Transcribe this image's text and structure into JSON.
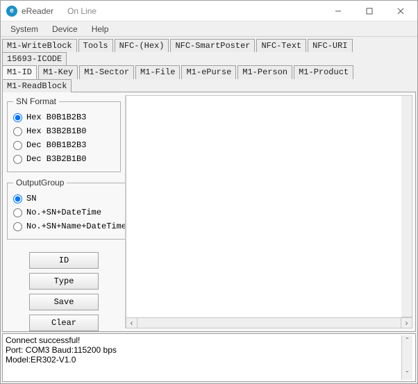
{
  "window": {
    "title": "eReader",
    "subtitle": "On Line",
    "icon_letter": "e"
  },
  "menu": {
    "items": [
      "System",
      "Device",
      "Help"
    ]
  },
  "tabs_row1": [
    "M1-WriteBlock",
    "Tools",
    "NFC-(Hex)",
    "NFC-SmartPoster",
    "NFC-Text",
    "NFC-URI",
    "15693-ICODE"
  ],
  "tabs_row2": [
    "M1-ID",
    "M1-Key",
    "M1-Sector",
    "M1-File",
    "M1-ePurse",
    "M1-Person",
    "M1-Product",
    "M1-ReadBlock"
  ],
  "active_tab": "M1-ID",
  "sn_format": {
    "legend": "SN Format",
    "options": [
      "Hex B0B1B2B3",
      "Hex B3B2B1B0",
      "Dec B0B1B2B3",
      "Dec B3B2B1B0"
    ],
    "selected": 0
  },
  "output_group": {
    "legend": "OutputGroup",
    "options": [
      "SN",
      "No.+SN+DateTime",
      "No.+SN+Name+DateTime"
    ],
    "selected": 0
  },
  "buttons": {
    "id": "ID",
    "type": "Type",
    "save": "Save",
    "clear": "Clear"
  },
  "status_lines": "Connect successful!\nPort: COM3 Baud:115200 bps\nModel:ER302-V1.0",
  "colors": {
    "window_bg": "#f0f0f0",
    "panel_bg": "#f8f8f8",
    "border": "#a0a0a0",
    "icon_bg": "#1e90c8",
    "text": "#222222"
  }
}
